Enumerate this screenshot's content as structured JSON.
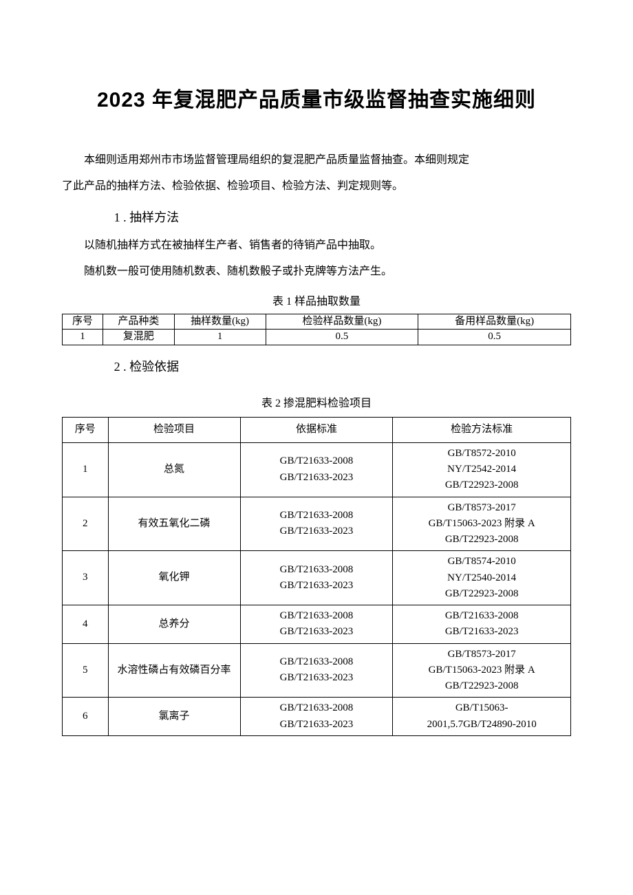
{
  "title": "2023 年复混肥产品质量市级监督抽查实施细则",
  "intro1": "本细则适用郑州市市场监督管理局组织的复混肥产品质量监督抽查。本细则规定",
  "intro2": "了此产品的抽样方法、检验依据、检验项目、检验方法、判定规则等。",
  "section1_heading": "1 . 抽样方法",
  "section1_p1": "以随机抽样方式在被抽样生产者、销售者的待销产品中抽取。",
  "section1_p2": "随机数一般可使用随机数表、随机数骰子或扑克牌等方法产生。",
  "table1_caption": "表 1 样品抽取数量",
  "table1": {
    "head": [
      "序号",
      "产品种类",
      "抽样数量(kg)",
      "检验样品数量(kg)",
      "备用样品数量(kg)"
    ],
    "rows": [
      [
        "1",
        "复混肥",
        "1",
        "0.5",
        "0.5"
      ]
    ]
  },
  "section2_heading": "2 . 检验依据",
  "table2_caption": "表 2 掺混肥料检验项目",
  "table2": {
    "head": [
      "序号",
      "检验项目",
      "依据标准",
      "检验方法标准"
    ],
    "rows": [
      {
        "no": "1",
        "item": "总氮",
        "basis": "GB/T21633-2008\nGB/T21633-2023",
        "method": "GB/T8572-2010\nNY/T2542-2014\nGB/T22923-2008"
      },
      {
        "no": "2",
        "item": "有效五氧化二磷",
        "basis": "GB/T21633-2008\nGB/T21633-2023",
        "method": "GB/T8573-2017\nGB/T15063-2023 附录 A\nGB/T22923-2008"
      },
      {
        "no": "3",
        "item": "氧化钾",
        "basis": "GB/T21633-2008\nGB/T21633-2023",
        "method": "GB/T8574-2010\nNY/T2540-2014\nGB/T22923-2008"
      },
      {
        "no": "4",
        "item": "总养分",
        "basis": "GB/T21633-2008\nGB/T21633-2023",
        "method": "GB/T21633-2008\nGB/T21633-2023"
      },
      {
        "no": "5",
        "item": "水溶性磷占有效磷百分率",
        "basis": "GB/T21633-2008\nGB/T21633-2023",
        "method": "GB/T8573-2017\nGB/T15063-2023 附录 A\nGB/T22923-2008"
      },
      {
        "no": "6",
        "item": "氯离子",
        "basis": "GB/T21633-2008\nGB/T21633-2023",
        "method": "GB/T15063-\n2001,5.7GB/T24890-2010"
      }
    ]
  }
}
